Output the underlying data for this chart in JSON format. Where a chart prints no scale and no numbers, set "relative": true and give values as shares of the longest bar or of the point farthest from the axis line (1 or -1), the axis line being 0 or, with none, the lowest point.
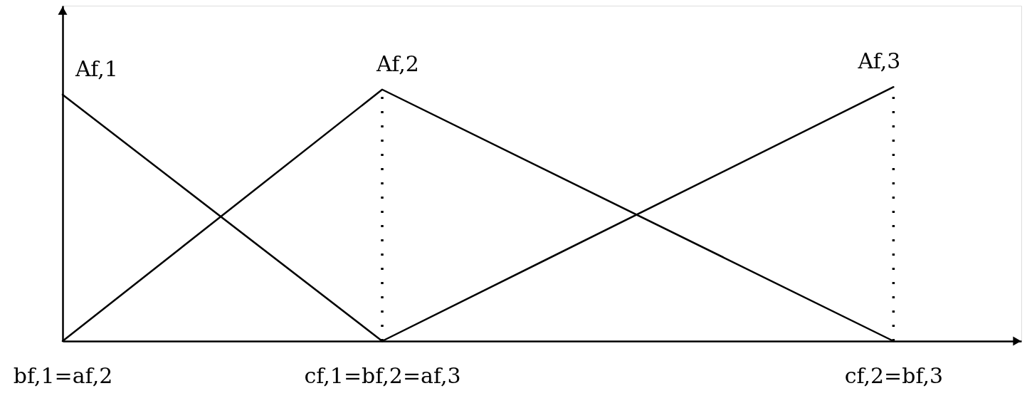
{
  "chart_data": {
    "type": "line",
    "relative": true,
    "categories": [
      "bf,1=af,2",
      null,
      null,
      null,
      null,
      "cf,1=bf,2=af,3",
      null,
      null,
      null,
      null,
      null,
      null,
      null,
      "cf,2=bf,3"
    ],
    "series": [
      {
        "name": "Af,1",
        "color": "#000000",
        "x": [
          "bf,1=af,2",
          "cf,1=bf,2=af,3"
        ],
        "values": [
          0.97,
          0
        ]
      },
      {
        "name": "Af,2",
        "color": "#000000",
        "x": [
          "bf,1=af,2",
          "cf,1=bf,2=af,3",
          "cf,2=bf,3"
        ],
        "values": [
          0,
          0.99,
          0
        ]
      },
      {
        "name": "Af,3",
        "color": "#000000",
        "x": [
          "cf,1=bf,2=af,3",
          "cf,2=bf,3"
        ],
        "values": [
          0,
          1
        ]
      }
    ],
    "ref_lines": [
      {
        "axis": "x",
        "value": "cf,1=bf,2=af,3",
        "line_style": "dotted",
        "color": "#000000"
      },
      {
        "axis": "x",
        "value": "cf,2=bf,3",
        "line_style": "dotted",
        "color": "#000000"
      }
    ],
    "grid": false,
    "legend": false,
    "marker": "none",
    "line_style": "solid",
    "tick_labels": "x"
  }
}
